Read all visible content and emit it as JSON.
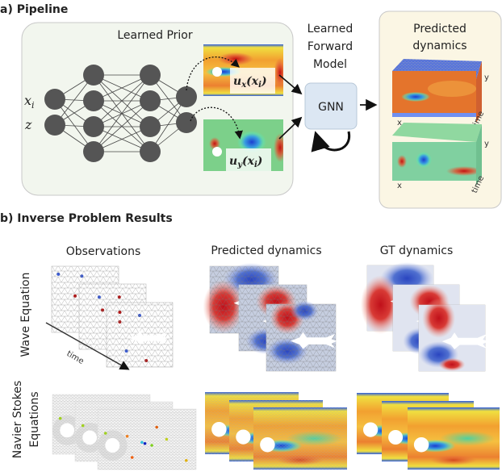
{
  "section_a": {
    "title": "a) Pipeline",
    "learned_prior": {
      "title": "Learned Prior",
      "input_x": "x",
      "input_x_sub": "i",
      "input_z": "z",
      "field_ux": "u",
      "field_ux_sub": "x",
      "field_ux_arg": "(x",
      "field_ux_arg_sub": "i",
      "field_ux_close": ")",
      "field_uy": "u",
      "field_uy_sub": "y",
      "field_uy_arg": "(x",
      "field_uy_arg_sub": "i",
      "field_uy_close": ")"
    },
    "forward_model": {
      "line1": "Learned",
      "line2": "Forward",
      "line3": "Model",
      "block": "GNN"
    },
    "predicted": {
      "line1": "Predicted",
      "line2": "dynamics",
      "axis_x": "x",
      "axis_y": "y",
      "axis_t": "time"
    }
  },
  "section_b": {
    "title": "b) Inverse Problem Results",
    "columns": [
      "Observations",
      "Predicted dynamics",
      "GT dynamics"
    ],
    "rows": {
      "wave": "Wave Equation",
      "ns_line1": "Navier Stokes",
      "ns_line2": "Equations"
    },
    "time_label": "time"
  },
  "colors": {
    "prior_bg": "#f2f6ee",
    "pred_bg": "#fbf6e4",
    "gnn_bg": "#dce7f3",
    "node": "#555555"
  }
}
